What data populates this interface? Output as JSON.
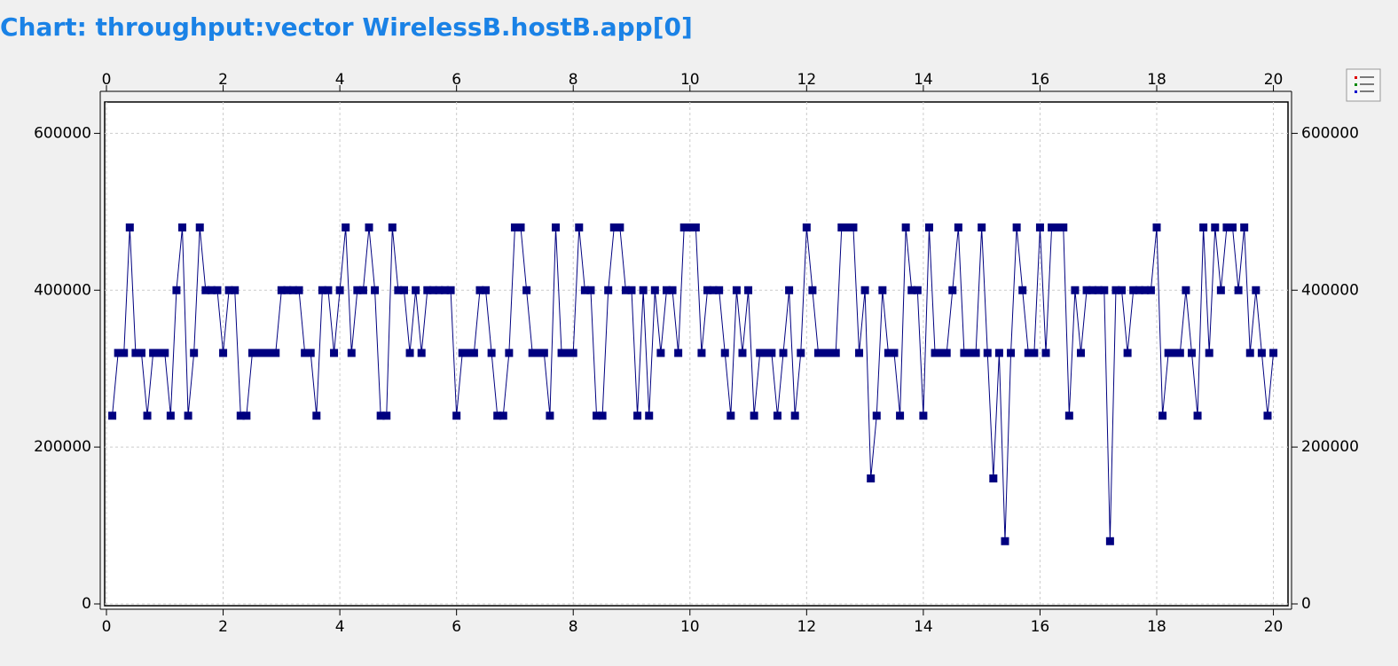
{
  "chart_data": {
    "type": "line",
    "title": "Chart: throughput:vector WirelessB.hostB.app[0]",
    "x": [
      0.1,
      0.2,
      0.3,
      0.4,
      0.5,
      0.6,
      0.7,
      0.8,
      0.9,
      1.0,
      1.1,
      1.2,
      1.3,
      1.4,
      1.5,
      1.6,
      1.7,
      1.8,
      1.9,
      2.0,
      2.1,
      2.2,
      2.3,
      2.4,
      2.5,
      2.6,
      2.7,
      2.8,
      2.9,
      3.0,
      3.1,
      3.2,
      3.3,
      3.4,
      3.5,
      3.6,
      3.7,
      3.8,
      3.9,
      4.0,
      4.1,
      4.2,
      4.3,
      4.4,
      4.5,
      4.6,
      4.7,
      4.8,
      4.9,
      5.0,
      5.1,
      5.2,
      5.3,
      5.4,
      5.5,
      5.6,
      5.7,
      5.8,
      5.9,
      6.0,
      6.1,
      6.2,
      6.3,
      6.4,
      6.5,
      6.6,
      6.7,
      6.8,
      6.9,
      7.0,
      7.1,
      7.2,
      7.3,
      7.4,
      7.5,
      7.6,
      7.7,
      7.8,
      7.9,
      8.0,
      8.1,
      8.2,
      8.3,
      8.4,
      8.5,
      8.6,
      8.7,
      8.8,
      8.9,
      9.0,
      9.1,
      9.2,
      9.3,
      9.4,
      9.5,
      9.6,
      9.7,
      9.8,
      9.9,
      10.0,
      10.1,
      10.2,
      10.3,
      10.4,
      10.5,
      10.6,
      10.7,
      10.8,
      10.9,
      11.0,
      11.1,
      11.2,
      11.3,
      11.4,
      11.5,
      11.6,
      11.7,
      11.8,
      11.9,
      12.0,
      12.1,
      12.2,
      12.3,
      12.4,
      12.5,
      12.6,
      12.7,
      12.8,
      12.9,
      13.0,
      13.1,
      13.2,
      13.3,
      13.4,
      13.5,
      13.6,
      13.7,
      13.8,
      13.9,
      14.0,
      14.1,
      14.2,
      14.3,
      14.4,
      14.5,
      14.6,
      14.7,
      14.8,
      14.9,
      15.0,
      15.1,
      15.2,
      15.3,
      15.4,
      15.5,
      15.6,
      15.7,
      15.8,
      15.9,
      16.0,
      16.1,
      16.2,
      16.3,
      16.4,
      16.5,
      16.6,
      16.7,
      16.8,
      16.9,
      17.0,
      17.1,
      17.2,
      17.3,
      17.4,
      17.5,
      17.6,
      17.7,
      17.8,
      17.9,
      18.0,
      18.1,
      18.2,
      18.3,
      18.4,
      18.5,
      18.6,
      18.7,
      18.8,
      18.9,
      19.0,
      19.1,
      19.2,
      19.3,
      19.4,
      19.5,
      19.6,
      19.7,
      19.8,
      19.9,
      20.0
    ],
    "series": [
      {
        "color": "#000080",
        "values": [
          240000,
          320000,
          320000,
          480000,
          320000,
          320000,
          240000,
          320000,
          320000,
          320000,
          240000,
          400000,
          480000,
          240000,
          320000,
          480000,
          400000,
          400000,
          400000,
          320000,
          400000,
          400000,
          240000,
          240000,
          320000,
          320000,
          320000,
          320000,
          320000,
          400000,
          400000,
          400000,
          400000,
          320000,
          320000,
          240000,
          400000,
          400000,
          320000,
          400000,
          480000,
          320000,
          400000,
          400000,
          480000,
          400000,
          240000,
          240000,
          480000,
          400000,
          400000,
          320000,
          400000,
          320000,
          400000,
          400000,
          400000,
          400000,
          400000,
          240000,
          320000,
          320000,
          320000,
          400000,
          400000,
          320000,
          240000,
          240000,
          320000,
          480000,
          480000,
          400000,
          320000,
          320000,
          320000,
          240000,
          480000,
          320000,
          320000,
          320000,
          480000,
          400000,
          400000,
          240000,
          240000,
          400000,
          480000,
          480000,
          400000,
          400000,
          240000,
          400000,
          240000,
          400000,
          320000,
          400000,
          400000,
          320000,
          480000,
          480000,
          480000,
          320000,
          400000,
          400000,
          400000,
          320000,
          240000,
          400000,
          320000,
          400000,
          240000,
          320000,
          320000,
          320000,
          240000,
          320000,
          400000,
          240000,
          320000,
          480000,
          400000,
          320000,
          320000,
          320000,
          320000,
          480000,
          480000,
          480000,
          320000,
          400000,
          160000,
          240000,
          400000,
          320000,
          320000,
          240000,
          480000,
          400000,
          400000,
          240000,
          480000,
          320000,
          320000,
          320000,
          400000,
          480000,
          320000,
          320000,
          320000,
          480000,
          320000,
          160000,
          320000,
          80000,
          320000,
          480000,
          400000,
          320000,
          320000,
          480000,
          320000,
          480000,
          480000,
          480000,
          240000,
          400000,
          320000,
          400000,
          400000,
          400000,
          400000,
          80000,
          400000,
          400000,
          320000,
          400000,
          400000,
          400000,
          400000,
          480000,
          240000,
          320000,
          320000,
          320000,
          400000,
          320000,
          240000,
          480000,
          320000,
          480000,
          400000,
          480000,
          480000,
          400000,
          480000,
          320000,
          400000,
          320000,
          240000,
          320000
        ]
      }
    ],
    "xlim": [
      0,
      20.25
    ],
    "xticks": [
      0,
      2,
      4,
      6,
      8,
      10,
      12,
      14,
      16,
      18,
      20
    ],
    "ylim": [
      0,
      640000
    ],
    "yticks": [
      0,
      200000,
      400000,
      600000
    ],
    "grid": true
  }
}
